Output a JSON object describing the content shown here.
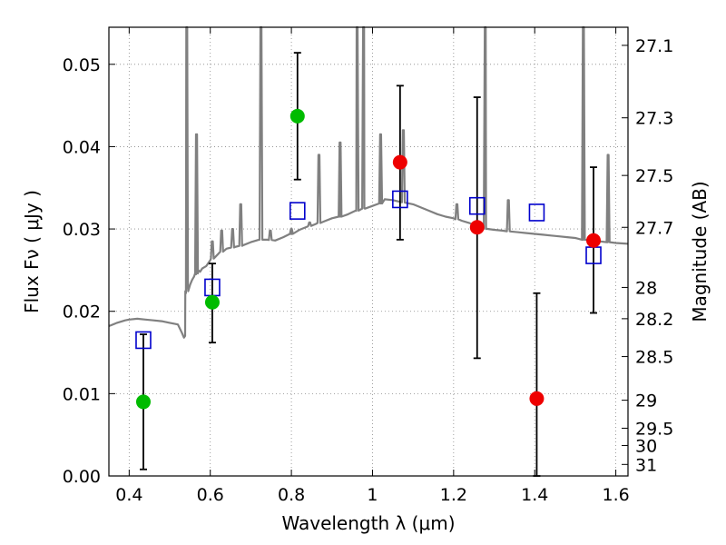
{
  "chart_data": {
    "type": "scatter",
    "xlabel": "Wavelength  λ (μm)",
    "ylabel": "Flux  Fν  ( μJy )",
    "ylabel_right": "Magnitude (AB)",
    "xlim": [
      0.35,
      1.63
    ],
    "ylim": [
      0.0,
      0.0545
    ],
    "grid": true,
    "x_ticks": [
      0.4,
      0.6,
      0.8,
      1.0,
      1.2,
      1.4,
      1.6
    ],
    "x_tick_labels": [
      "0.4",
      "0.6",
      "0.8",
      "1",
      "1.2",
      "1.4",
      "1.6"
    ],
    "y_ticks": [
      0.0,
      0.01,
      0.02,
      0.03,
      0.04,
      0.05
    ],
    "y_tick_labels": [
      "0.00",
      "0.01",
      "0.02",
      "0.03",
      "0.04",
      "0.05"
    ],
    "right_ticks": [
      {
        "label": "27.1",
        "flux": 0.0523
      },
      {
        "label": "27.3",
        "flux": 0.0435
      },
      {
        "label": "27.5",
        "flux": 0.0365
      },
      {
        "label": "27.7",
        "flux": 0.0302
      },
      {
        "label": "28",
        "flux": 0.0229
      },
      {
        "label": "28.2",
        "flux": 0.0191
      },
      {
        "label": "28.5",
        "flux": 0.0145
      },
      {
        "label": "29",
        "flux": 0.0092
      },
      {
        "label": "29.5",
        "flux": 0.0058
      },
      {
        "label": "30",
        "flux": 0.0037
      },
      {
        "label": "31",
        "flux": 0.0014
      }
    ],
    "series": [
      {
        "kind": "model_spectrum",
        "color": "#808080",
        "x": [
          0.35,
          0.37,
          0.39,
          0.4,
          0.42,
          0.44,
          0.46,
          0.48,
          0.5,
          0.52,
          0.53,
          0.535,
          0.538,
          0.54,
          0.545,
          0.55,
          0.555,
          0.56,
          0.565,
          0.57,
          0.575,
          0.58,
          0.59,
          0.6,
          0.62,
          0.64,
          0.66,
          0.68,
          0.7,
          0.72,
          0.74,
          0.76,
          0.78,
          0.8,
          0.82,
          0.84,
          0.86,
          0.88,
          0.9,
          0.92,
          0.94,
          0.96,
          0.98,
          1.0,
          1.02,
          1.03,
          1.05,
          1.08,
          1.1,
          1.12,
          1.14,
          1.16,
          1.18,
          1.2,
          1.22,
          1.24,
          1.26,
          1.28,
          1.3,
          1.32,
          1.34,
          1.36,
          1.38,
          1.4,
          1.42,
          1.44,
          1.46,
          1.48,
          1.5,
          1.52,
          1.54,
          1.56,
          1.58,
          1.6,
          1.63
        ],
        "values": [
          0.0182,
          0.0186,
          0.0189,
          0.019,
          0.0191,
          0.019,
          0.0189,
          0.0188,
          0.0186,
          0.0184,
          0.0174,
          0.0168,
          0.017,
          0.0222,
          0.0228,
          0.0232,
          0.0238,
          0.0242,
          0.0245,
          0.025,
          0.0248,
          0.0252,
          0.0255,
          0.0262,
          0.027,
          0.0276,
          0.0278,
          0.028,
          0.0284,
          0.0287,
          0.0287,
          0.0286,
          0.029,
          0.0294,
          0.0299,
          0.0303,
          0.0306,
          0.0309,
          0.0313,
          0.0315,
          0.0318,
          0.0322,
          0.0325,
          0.0328,
          0.0331,
          0.0336,
          0.0335,
          0.0332,
          0.033,
          0.0326,
          0.0322,
          0.0318,
          0.0315,
          0.0313,
          0.031,
          0.0307,
          0.0302,
          0.03,
          0.0299,
          0.0298,
          0.0297,
          0.0296,
          0.0295,
          0.0294,
          0.0293,
          0.0292,
          0.0291,
          0.029,
          0.0289,
          0.0287,
          0.0286,
          0.0285,
          0.0284,
          0.0283,
          0.0282
        ],
        "emission_lines": [
          {
            "x": 0.542,
            "peak": 0.0545
          },
          {
            "x": 0.566,
            "peak": 0.0415
          },
          {
            "x": 0.605,
            "peak": 0.0285
          },
          {
            "x": 0.628,
            "peak": 0.0298
          },
          {
            "x": 0.655,
            "peak": 0.03
          },
          {
            "x": 0.675,
            "peak": 0.033
          },
          {
            "x": 0.725,
            "peak": 0.0545
          },
          {
            "x": 0.748,
            "peak": 0.0298
          },
          {
            "x": 0.8,
            "peak": 0.03
          },
          {
            "x": 0.845,
            "peak": 0.0308
          },
          {
            "x": 0.868,
            "peak": 0.039
          },
          {
            "x": 0.92,
            "peak": 0.0405
          },
          {
            "x": 0.962,
            "peak": 0.0545
          },
          {
            "x": 0.978,
            "peak": 0.0545
          },
          {
            "x": 1.02,
            "peak": 0.0415
          },
          {
            "x": 1.076,
            "peak": 0.042
          },
          {
            "x": 1.208,
            "peak": 0.033
          },
          {
            "x": 1.278,
            "peak": 0.0545
          },
          {
            "x": 1.335,
            "peak": 0.0335
          },
          {
            "x": 1.52,
            "peak": 0.0545
          },
          {
            "x": 1.581,
            "peak": 0.039
          }
        ]
      },
      {
        "kind": "green_points",
        "color": "#00bb00",
        "x": [
          0.435,
          0.605,
          0.815
        ],
        "values": [
          0.009,
          0.0211,
          0.0437
        ]
      },
      {
        "kind": "red_points",
        "color": "#ee0000",
        "x": [
          1.068,
          1.258,
          1.405,
          1.545
        ],
        "values": [
          0.0381,
          0.0302,
          0.0094,
          0.0286
        ]
      },
      {
        "kind": "blue_open_squares",
        "color": "#0000cc",
        "x": [
          0.435,
          0.605,
          0.815,
          1.068,
          1.258,
          1.405,
          1.545
        ],
        "values": [
          0.0165,
          0.0229,
          0.0322,
          0.0336,
          0.0328,
          0.032,
          0.0268
        ]
      },
      {
        "kind": "error_bars",
        "color": "#000000",
        "x": [
          0.435,
          0.605,
          0.815,
          1.068,
          1.258,
          1.405,
          1.545
        ],
        "low": [
          0.0008,
          0.0162,
          0.036,
          0.0287,
          0.0143,
          0.0,
          0.0198
        ],
        "high": [
          0.0172,
          0.0258,
          0.0514,
          0.0474,
          0.046,
          0.0222,
          0.0375
        ]
      }
    ]
  }
}
